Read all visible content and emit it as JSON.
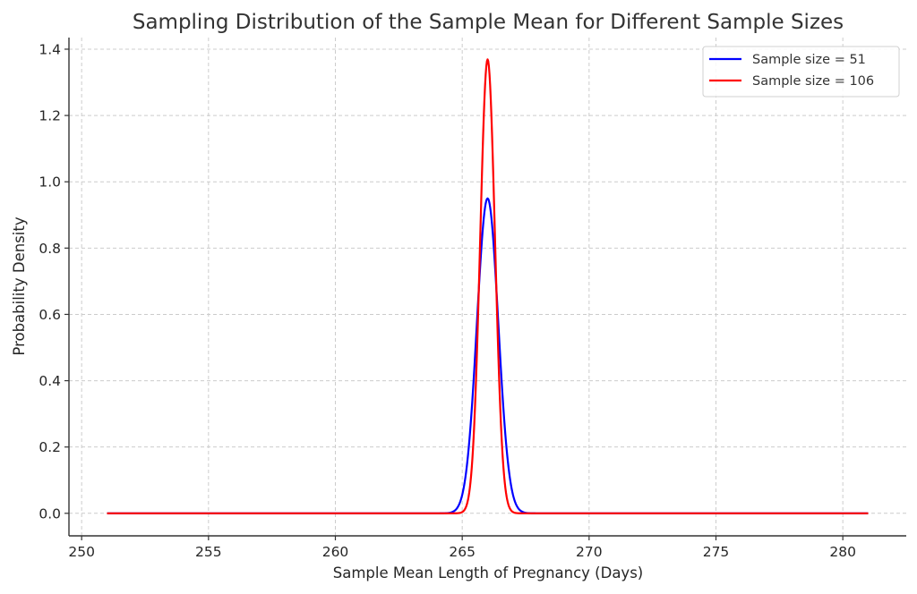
{
  "chart_data": {
    "type": "line",
    "title": "Sampling Distribution of the Sample Mean for Different Sample Sizes",
    "xlabel": "Sample Mean Length of Pregnancy (Days)",
    "ylabel": "Probability Density",
    "xlim": [
      249.5,
      282.5
    ],
    "ylim": [
      -0.068,
      1.435
    ],
    "xticks": [
      250,
      255,
      260,
      265,
      270,
      275,
      280
    ],
    "xtick_labels": [
      "250",
      "255",
      "260",
      "265",
      "270",
      "275",
      "280"
    ],
    "yticks": [
      0.0,
      0.2,
      0.4,
      0.6,
      0.8,
      1.0,
      1.2,
      1.4
    ],
    "ytick_labels": [
      "0.0",
      "0.2",
      "0.4",
      "0.6",
      "0.8",
      "1.0",
      "1.2",
      "1.4"
    ],
    "grid": true,
    "legend_position": "top-right",
    "x_range": [
      251,
      281
    ],
    "series": [
      {
        "name": "Sample size = 51",
        "color": "#0000ff",
        "kind": "normal_pdf",
        "mean": 266,
        "sigma": 0.42,
        "peak": 0.95
      },
      {
        "name": "Sample size = 106",
        "color": "#ff0000",
        "kind": "normal_pdf",
        "mean": 266,
        "sigma": 0.2914,
        "peak": 1.369
      }
    ]
  }
}
